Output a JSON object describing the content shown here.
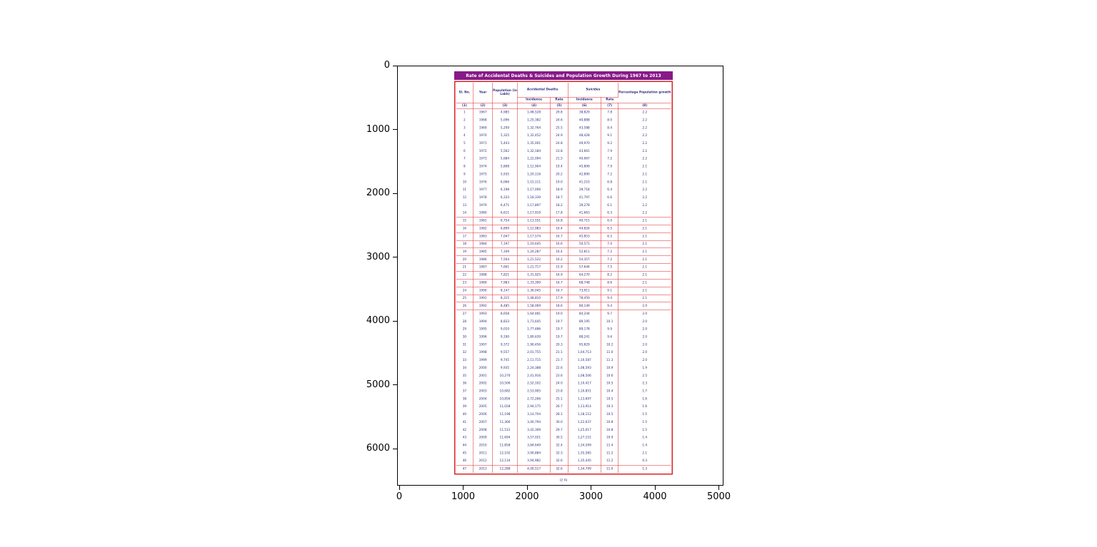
{
  "figure": {
    "x_ticks": [
      "0",
      "1000",
      "2000",
      "3000",
      "4000",
      "5000"
    ],
    "y_ticks": [
      "0",
      "1000",
      "2000",
      "3000",
      "4000",
      "5000",
      "6000"
    ]
  },
  "chart_data": {
    "type": "table",
    "title": "Rate of Accidental Deaths & Suicides and Population Growth During 1967 to 2013",
    "caption": "(2 A)",
    "colors": {
      "title_bg": "#871a87",
      "table_border": "#d8232a",
      "text": "#2b2b7e",
      "axes_border": "#000000"
    },
    "header": {
      "sl": "Sl. No.",
      "year": "Year",
      "population": "Population (in Lakh)",
      "accidental": "Accidental Deaths",
      "suicides": "Suicides",
      "incidence": "Incidence",
      "rate": "Rate",
      "incidence2": "Incidence",
      "rate2": "Rate",
      "growth": "Percentage Population growth"
    },
    "col_numbers": [
      "(1)",
      "(2)",
      "(3)",
      "(4)",
      "(5)",
      "(6)",
      "(7)",
      "(8)"
    ],
    "columns": [
      "Sl. No.",
      "Year",
      "Population (in Lakh)",
      "Accidental Deaths Incidence",
      "Accidental Deaths Rate",
      "Suicides Incidence",
      "Suicides Rate",
      "Percentage Population growth"
    ],
    "rows": [
      [
        "1",
        "1967",
        "4,985",
        "1,48,528",
        "29.8",
        "38,829",
        "7.8",
        "2.2"
      ],
      [
        "2",
        "1968",
        "5,096",
        "1,25,382",
        "24.6",
        "40,888",
        "8.0",
        "2.2"
      ],
      [
        "3",
        "1969",
        "5,209",
        "1,32,764",
        "25.5",
        "43,588",
        "8.4",
        "2.2"
      ],
      [
        "4",
        "1970",
        "5,325",
        "1,32,452",
        "24.9",
        "48,428",
        "9.1",
        "2.2"
      ],
      [
        "5",
        "1971",
        "5,443",
        "1,35,001",
        "24.8",
        "49,970",
        "9.2",
        "2.2"
      ],
      [
        "6",
        "1972",
        "5,562",
        "1,32,184",
        "23.8",
        "43,661",
        "7.9",
        "2.2"
      ],
      [
        "7",
        "1973",
        "5,684",
        "1,22,094",
        "21.5",
        "40,967",
        "7.2",
        "2.2"
      ],
      [
        "8",
        "1974",
        "5,808",
        "1,12,904",
        "19.4",
        "45,806",
        "7.9",
        "2.1"
      ],
      [
        "9",
        "1975",
        "5,935",
        "1,20,116",
        "20.2",
        "42,890",
        "7.2",
        "2.1"
      ],
      [
        "10",
        "1976",
        "6,066",
        "1,15,111",
        "19.0",
        "41,210",
        "6.8",
        "2.1"
      ],
      [
        "11",
        "1977",
        "6,198",
        "1,17,006",
        "18.9",
        "39,718",
        "6.4",
        "2.2"
      ],
      [
        "12",
        "1978",
        "6,333",
        "1,18,339",
        "18.7",
        "41,797",
        "6.6",
        "2.2"
      ],
      [
        "13",
        "1979",
        "6,471",
        "1,17,897",
        "18.2",
        "39,278",
        "6.1",
        "2.2"
      ],
      [
        "14",
        "1980",
        "6,611",
        "1,17,919",
        "17.8",
        "41,663",
        "6.3",
        "2.2"
      ],
      [
        "15",
        "1981",
        "6,754",
        "1,13,551",
        "16.8",
        "40,715",
        "6.0",
        "2.1"
      ],
      [
        "16",
        "1982",
        "6,899",
        "1,12,983",
        "16.4",
        "44,826",
        "6.5",
        "2.1"
      ],
      [
        "17",
        "1983",
        "7,047",
        "1,17,574",
        "16.7",
        "45,853",
        "6.5",
        "2.1"
      ],
      [
        "18",
        "1984",
        "7,197",
        "1,19,645",
        "16.6",
        "50,571",
        "7.0",
        "2.1"
      ],
      [
        "19",
        "1985",
        "7,349",
        "1,20,287",
        "16.4",
        "52,811",
        "7.2",
        "2.1"
      ],
      [
        "20",
        "1986",
        "7,504",
        "1,21,522",
        "16.2",
        "54,357",
        "7.2",
        "2.1"
      ],
      [
        "21",
        "1987",
        "7,661",
        "1,21,717",
        "15.9",
        "57,644",
        "7.5",
        "2.1"
      ],
      [
        "22",
        "1988",
        "7,821",
        "1,31,925",
        "16.9",
        "64,270",
        "8.2",
        "2.1"
      ],
      [
        "23",
        "1989",
        "7,983",
        "1,33,399",
        "16.7",
        "68,748",
        "8.6",
        "2.1"
      ],
      [
        "24",
        "1990",
        "8,147",
        "1,36,045",
        "16.7",
        "73,911",
        "9.1",
        "2.1"
      ],
      [
        "25",
        "1991",
        "8,315",
        "1,48,810",
        "17.9",
        "78,450",
        "9.4",
        "2.1"
      ],
      [
        "26",
        "1992",
        "8,485",
        "1,58,069",
        "18.6",
        "80,149",
        "9.4",
        "2.0"
      ],
      [
        "27",
        "1993",
        "8,658",
        "1,64,481",
        "19.0",
        "84,244",
        "9.7",
        "2.0"
      ],
      [
        "28",
        "1994",
        "8,833",
        "1,73,645",
        "19.7",
        "89,195",
        "10.1",
        "2.0"
      ],
      [
        "29",
        "1995",
        "9,010",
        "1,77,486",
        "19.7",
        "89,178",
        "9.9",
        "2.0"
      ],
      [
        "30",
        "1996",
        "9,190",
        "1,80,639",
        "19.7",
        "88,241",
        "9.6",
        "2.0"
      ],
      [
        "31",
        "1997",
        "9,372",
        "1,90,456",
        "20.3",
        "95,829",
        "10.2",
        "2.0"
      ],
      [
        "32",
        "1998",
        "9,557",
        "2,01,755",
        "21.1",
        "1,04,713",
        "11.0",
        "2.0"
      ],
      [
        "33",
        "1999",
        "9,745",
        "2,11,715",
        "21.7",
        "1,10,587",
        "11.3",
        "2.0"
      ],
      [
        "34",
        "2000",
        "9,935",
        "2,24,388",
        "22.6",
        "1,08,593",
        "10.9",
        "1.9"
      ],
      [
        "35",
        "2001",
        "10,270",
        "2,41,916",
        "23.6",
        "1,08,506",
        "10.6",
        "2.5"
      ],
      [
        "36",
        "2002",
        "10,506",
        "2,52,102",
        "24.0",
        "1,10,417",
        "10.5",
        "2.3"
      ],
      [
        "37",
        "2003",
        "10,682",
        "2,53,905",
        "23.8",
        "1,10,851",
        "10.4",
        "1.7"
      ],
      [
        "38",
        "2004",
        "10,856",
        "2,72,266",
        "25.1",
        "1,13,697",
        "10.5",
        "1.6"
      ],
      [
        "39",
        "2005",
        "11,028",
        "2,94,175",
        "26.7",
        "1,13,914",
        "10.3",
        "1.6"
      ],
      [
        "40",
        "2006",
        "11,198",
        "3,14,704",
        "28.1",
        "1,18,112",
        "10.5",
        "1.5"
      ],
      [
        "41",
        "2007",
        "11,366",
        "3,40,794",
        "30.0",
        "1,22,637",
        "10.8",
        "1.5"
      ],
      [
        "42",
        "2008",
        "11,531",
        "3,42,309",
        "29.7",
        "1,25,017",
        "10.8",
        "1.5"
      ],
      [
        "43",
        "2009",
        "11,694",
        "3,57,021",
        "30.5",
        "1,27,151",
        "10.9",
        "1.4"
      ],
      [
        "44",
        "2010",
        "11,858",
        "3,84,649",
        "32.4",
        "1,34,599",
        "11.4",
        "1.4"
      ],
      [
        "45",
        "2011",
        "12,102",
        "3,90,884",
        "32.3",
        "1,35,585",
        "11.2",
        "2.1"
      ],
      [
        "46",
        "2012",
        "12,134",
        "3,94,982",
        "32.6",
        "1,35,445",
        "11.2",
        "0.3"
      ],
      [
        "47",
        "2013",
        "12,288",
        "4,00,517",
        "32.6",
        "1,34,799",
        "11.0",
        "1.3"
      ]
    ]
  }
}
